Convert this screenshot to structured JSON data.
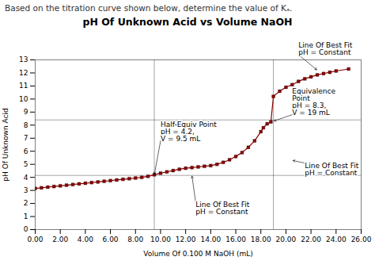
{
  "chart_data": {
    "type": "line",
    "subtitle": "Based on the titration curve shown below, determine the value of Kₐ.",
    "title": "pH Of Unknown Acid vs Volume NaOH",
    "xlabel": "Volume Of 0.100 M NaOH (mL)",
    "ylabel": "pH Of Unknown Acid",
    "x": [
      0.0,
      0.5,
      1.0,
      1.5,
      2.0,
      2.5,
      3.0,
      3.5,
      4.0,
      4.5,
      5.0,
      5.5,
      6.0,
      6.5,
      7.0,
      7.5,
      8.0,
      8.5,
      9.0,
      9.5,
      10.0,
      10.5,
      11.0,
      11.5,
      12.0,
      12.5,
      13.0,
      13.5,
      14.0,
      14.5,
      15.0,
      15.5,
      16.0,
      16.5,
      17.0,
      17.5,
      18.0,
      18.2,
      18.5,
      18.8,
      19.0,
      19.5,
      20.0,
      20.5,
      21.0,
      21.5,
      22.0,
      22.5,
      23.0,
      23.5,
      24.0,
      25.0
    ],
    "values": [
      3.15,
      3.2,
      3.25,
      3.3,
      3.35,
      3.4,
      3.45,
      3.5,
      3.55,
      3.6,
      3.65,
      3.7,
      3.75,
      3.8,
      3.85,
      3.9,
      3.95,
      4.0,
      4.08,
      4.2,
      4.32,
      4.42,
      4.52,
      4.62,
      4.7,
      4.75,
      4.8,
      4.85,
      4.9,
      5.0,
      5.15,
      5.35,
      5.6,
      5.9,
      6.3,
      6.8,
      7.5,
      7.8,
      8.1,
      8.25,
      10.2,
      10.6,
      10.9,
      11.1,
      11.35,
      11.55,
      11.7,
      11.85,
      11.95,
      12.05,
      12.15,
      12.3
    ],
    "color": "#8B0000",
    "marker": "square",
    "xlim": [
      0,
      26
    ],
    "ylim": [
      0,
      13
    ],
    "xticks": [
      {
        "value": 0,
        "label": "0.00"
      },
      {
        "value": 2,
        "label": "2.00"
      },
      {
        "value": 4,
        "label": "4.00"
      },
      {
        "value": 6,
        "label": "6.00"
      },
      {
        "value": 8,
        "label": "8.00"
      },
      {
        "value": 10,
        "label": "10.00"
      },
      {
        "value": 12,
        "label": "12.00"
      },
      {
        "value": 14,
        "label": "14.00"
      },
      {
        "value": 16,
        "label": "16.00"
      },
      {
        "value": 18,
        "label": "18.00"
      },
      {
        "value": 20,
        "label": "20.00"
      },
      {
        "value": 22,
        "label": "22.00"
      },
      {
        "value": 24,
        "label": "24.00"
      },
      {
        "value": 26,
        "label": "26.00"
      }
    ],
    "yticks": [
      0,
      1,
      2,
      3,
      4,
      5,
      6,
      7,
      8,
      9,
      10,
      11,
      12,
      13
    ],
    "grid": false,
    "hlines": [
      8.4,
      4.15
    ],
    "vlines": [
      9.5,
      19.0
    ],
    "annotations": [
      {
        "text": "Half-Equiv Point\npH = 4.2,\nV = 9.5 mL",
        "x": 9.5,
        "y": 4.2,
        "text_x": 10.0,
        "text_y": 6.8
      },
      {
        "text": "Equivalence\nPoint\npH = 8.3,\nV = 19 mL",
        "x": 19.0,
        "y": 8.3,
        "text_x": 20.5,
        "text_y": 8.8
      },
      {
        "text": "Line Of Best Fit\npH = Constant",
        "x": 22.5,
        "y": 12.2,
        "text_x": 21.0,
        "text_y": 13.4
      },
      {
        "text": "Line Of Best Fit\npH = Constant",
        "x": 12.5,
        "y": 4.15,
        "text_x": 12.8,
        "text_y": 2.1
      },
      {
        "text": "Line Of Best Fit\npH = Constant",
        "x": 20.5,
        "y": 5.3,
        "text_x": 21.5,
        "text_y": 5.1
      }
    ]
  }
}
